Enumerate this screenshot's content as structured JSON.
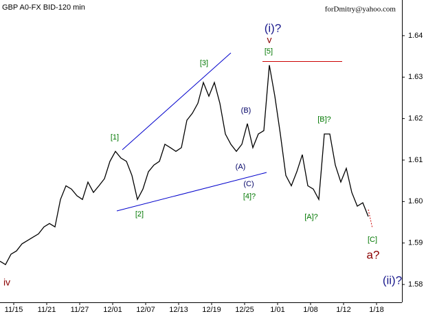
{
  "chart_data": {
    "type": "line",
    "title": "GBP A0-FX BID-120 min",
    "subtitle": "forDmitry@yahoo.com",
    "color": "#000000",
    "x": [
      0,
      1,
      2,
      3,
      4,
      5,
      6,
      7,
      8,
      9,
      10,
      11,
      12,
      13,
      14,
      15,
      16,
      17,
      18,
      19,
      20,
      21,
      22,
      23,
      24,
      25,
      26,
      27,
      28,
      29,
      30,
      31,
      32,
      33,
      34,
      35,
      36,
      37,
      38,
      39,
      40,
      41,
      42,
      43,
      44,
      45,
      46,
      47,
      48,
      49,
      50,
      51,
      52,
      53,
      54,
      55,
      56,
      57,
      58,
      59,
      60,
      61,
      62,
      63,
      64,
      65,
      66,
      67
    ],
    "values": [
      1.5856,
      1.5848,
      1.5873,
      1.5881,
      1.5898,
      1.5906,
      1.5914,
      1.5922,
      1.5939,
      1.5947,
      1.5939,
      1.6005,
      1.6038,
      1.603,
      1.6014,
      1.6005,
      1.6047,
      1.6022,
      1.6038,
      1.6055,
      1.6097,
      1.6121,
      1.6105,
      1.6097,
      1.6063,
      1.6005,
      1.603,
      1.6072,
      1.6088,
      1.6097,
      1.6138,
      1.613,
      1.6121,
      1.613,
      1.6196,
      1.6213,
      1.6237,
      1.6287,
      1.6254,
      1.6287,
      1.6237,
      1.6163,
      1.6138,
      1.6121,
      1.6138,
      1.6188,
      1.613,
      1.6163,
      1.6171,
      1.6329,
      1.6254,
      1.6163,
      1.6063,
      1.6038,
      1.6072,
      1.6113,
      1.6038,
      1.603,
      1.6005,
      1.6163,
      1.6163,
      1.6088,
      1.6047,
      1.608,
      1.6022,
      1.5989,
      1.5997,
      1.5964
    ],
    "xlim": [
      0,
      73.125
    ],
    "xticks": [
      {
        "value": 2.5,
        "label": "11/15"
      },
      {
        "value": 8.5,
        "label": "11/21"
      },
      {
        "value": 14.5,
        "label": "11/27"
      },
      {
        "value": 20.5,
        "label": "12/01"
      },
      {
        "value": 26.5,
        "label": "12/07"
      },
      {
        "value": 32.5,
        "label": "12/13"
      },
      {
        "value": 38.5,
        "label": "12/19"
      },
      {
        "value": 44.5,
        "label": "12/25"
      },
      {
        "value": 50.5,
        "label": "1/01"
      },
      {
        "value": 56.5,
        "label": "1/08"
      },
      {
        "value": 62.5,
        "label": "1/12"
      },
      {
        "value": 68.5,
        "label": "1/18"
      }
    ],
    "ylim": [
      1.5757,
      1.6486
    ],
    "yticks": [
      1.58,
      1.59,
      {
        "value": 1.6,
        "label": "1.60"
      },
      1.61,
      1.62,
      1.63,
      1.64
    ],
    "annotations": [
      {
        "text": "[1]",
        "color": "#007700"
      },
      {
        "text": "[2]",
        "color": "#007700"
      },
      {
        "text": "[3]",
        "color": "#007700"
      },
      {
        "text": "[4]?",
        "color": "#007700"
      },
      {
        "text": "[5]",
        "color": "#007700"
      },
      {
        "text": "(A)",
        "color": "#000066"
      },
      {
        "text": "(B)",
        "color": "#000066"
      },
      {
        "text": "(C)",
        "color": "#000066"
      },
      {
        "text": "[A]?",
        "color": "#007700"
      },
      {
        "text": "[B]?",
        "color": "#007700"
      },
      {
        "text": "[C]",
        "color": "#007700"
      },
      {
        "text": "(i)?",
        "color": "#1a1a8c"
      },
      {
        "text": "v",
        "color": "#8b0000"
      },
      {
        "text": "a?",
        "color": "#8b0000"
      },
      {
        "text": "(ii)?",
        "color": "#1a1a8c"
      },
      {
        "text": "iv",
        "color": "#8b0000"
      }
    ]
  }
}
